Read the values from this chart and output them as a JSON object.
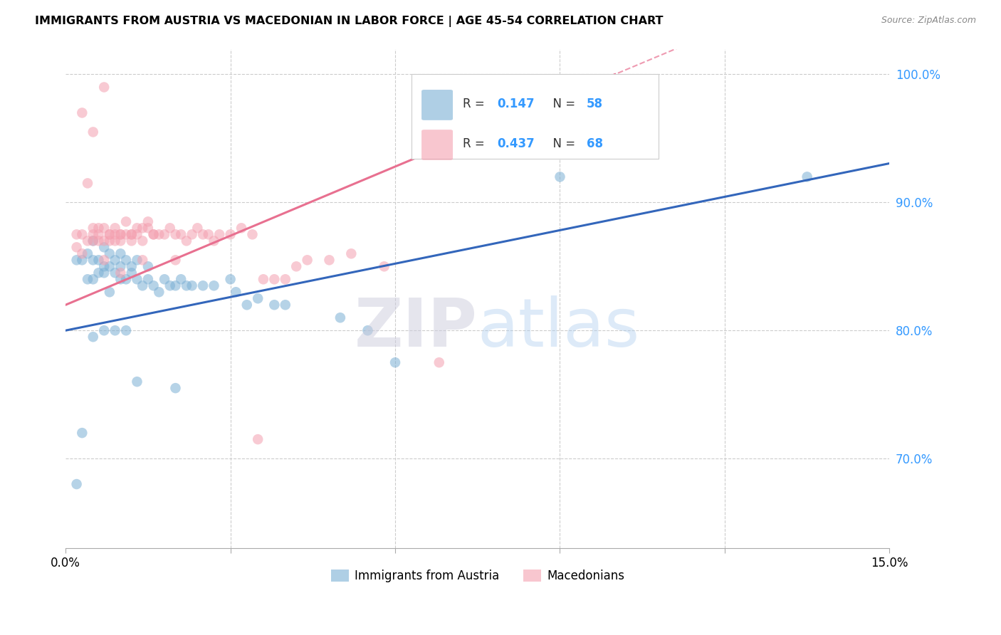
{
  "title": "IMMIGRANTS FROM AUSTRIA VS MACEDONIAN IN LABOR FORCE | AGE 45-54 CORRELATION CHART",
  "source": "Source: ZipAtlas.com",
  "ylabel": "In Labor Force | Age 45-54",
  "xlim": [
    0.0,
    0.15
  ],
  "ylim": [
    0.63,
    1.02
  ],
  "xticks": [
    0.0,
    0.03,
    0.06,
    0.09,
    0.12,
    0.15
  ],
  "xticklabels": [
    "0.0%",
    "",
    "",
    "",
    "",
    "15.0%"
  ],
  "yticks": [
    0.7,
    0.8,
    0.9,
    1.0
  ],
  "yticklabels": [
    "70.0%",
    "80.0%",
    "90.0%",
    "100.0%"
  ],
  "austria_R": 0.147,
  "austria_N": 58,
  "macedonian_R": 0.437,
  "macedonian_N": 68,
  "blue_color": "#7BAFD4",
  "pink_color": "#F4A0B0",
  "blue_line_color": "#3366BB",
  "pink_line_color": "#E87090",
  "background_color": "#FFFFFF",
  "grid_color": "#CCCCCC",
  "blue_intercept": 0.8,
  "blue_slope": 0.87,
  "pink_intercept": 0.82,
  "pink_slope": 1.8
}
